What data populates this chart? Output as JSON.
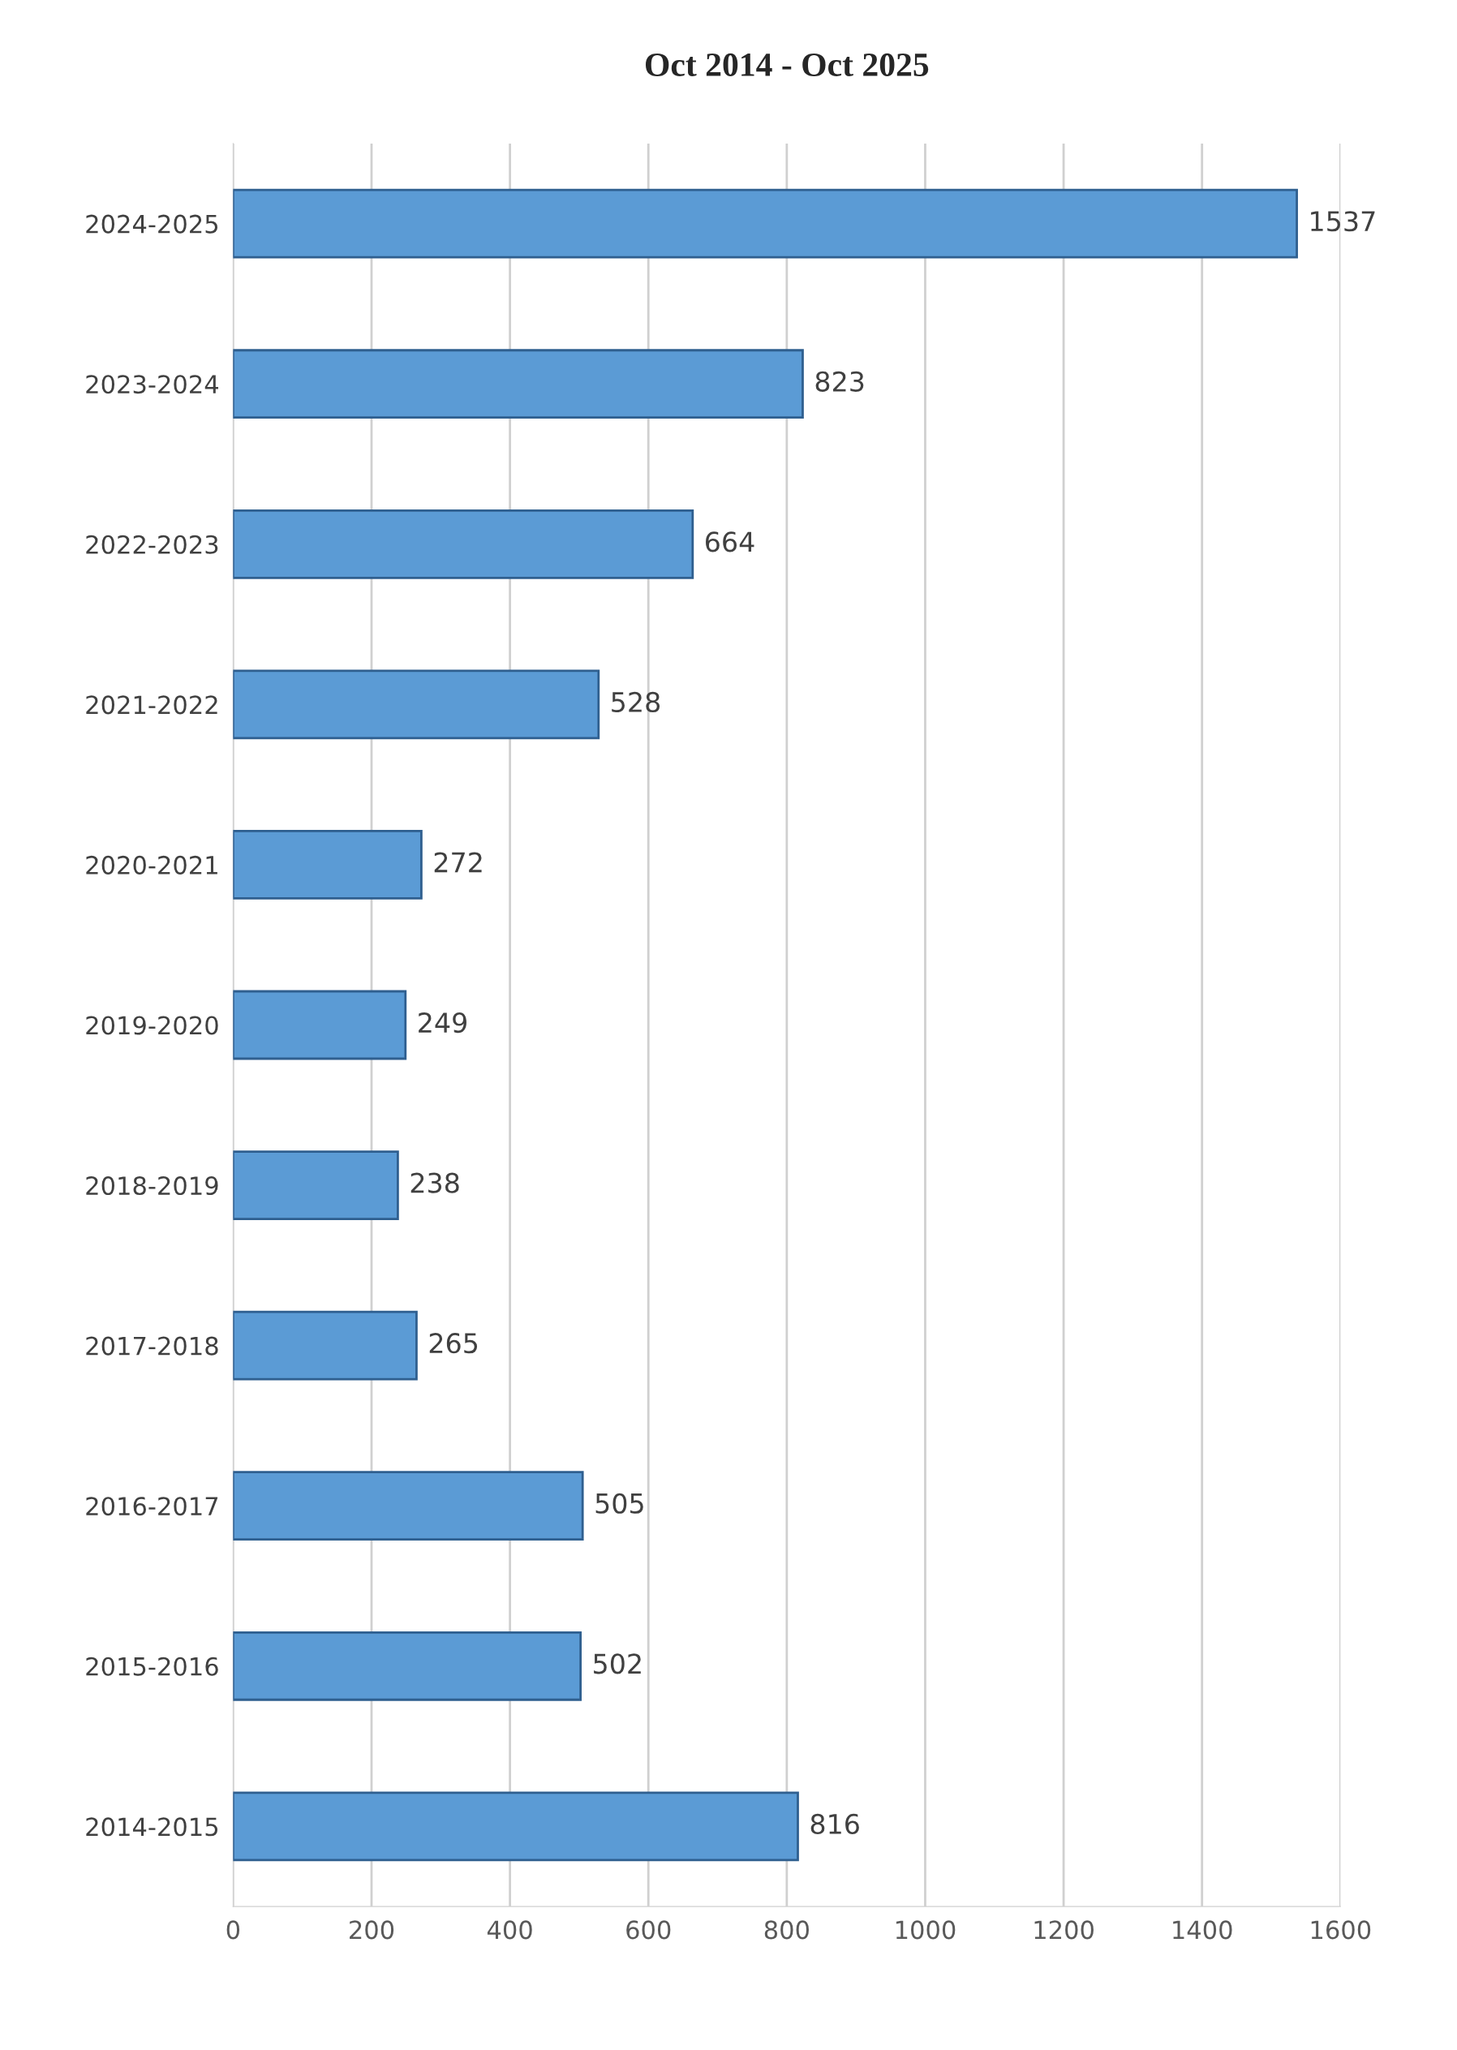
{
  "chart_data": {
    "type": "bar",
    "orientation": "horizontal",
    "title": "Oct 2014 - Oct 2025",
    "categories": [
      "2024-2025",
      "2023-2024",
      "2022-2023",
      "2021-2022",
      "2020-2021",
      "2019-2020",
      "2018-2019",
      "2017-2018",
      "2016-2017",
      "2015-2016",
      "2014-2015"
    ],
    "values": [
      1537,
      823,
      664,
      528,
      272,
      249,
      238,
      265,
      505,
      502,
      816
    ],
    "color": "#5b9bd5",
    "xlim": [
      0,
      1600
    ],
    "xticks": [
      0,
      200,
      400,
      600,
      800,
      1000,
      1200,
      1400,
      1600
    ],
    "grid": "x",
    "data_labels": true
  }
}
